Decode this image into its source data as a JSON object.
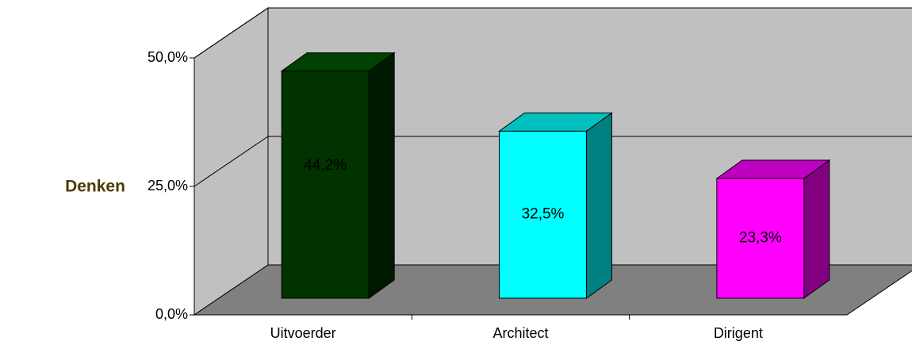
{
  "chart_data": {
    "type": "bar",
    "ylabel": "Denken",
    "categories": [
      "Uitvoerder",
      "Architect",
      "Dirigent"
    ],
    "values": [
      44.2,
      32.5,
      23.3
    ],
    "data_labels": [
      "44,2%",
      "32,5%",
      "23,3%"
    ],
    "ylim": [
      0,
      50
    ],
    "yticks": [
      0,
      25,
      50
    ],
    "ytick_labels": [
      "0,0%",
      "25,0%",
      "50,0%"
    ],
    "grid": true,
    "legend": "none",
    "colors": {
      "bars": [
        {
          "front": "#003300",
          "side": "#001a00",
          "top": "#004000"
        },
        {
          "front": "#00ffff",
          "side": "#008080",
          "top": "#00c0c0"
        },
        {
          "front": "#ff00ff",
          "side": "#800080",
          "top": "#c000c0"
        }
      ],
      "back_wall": "#c0c0c0",
      "side_wall": "#c0c0c0",
      "floor": "#808080"
    }
  }
}
